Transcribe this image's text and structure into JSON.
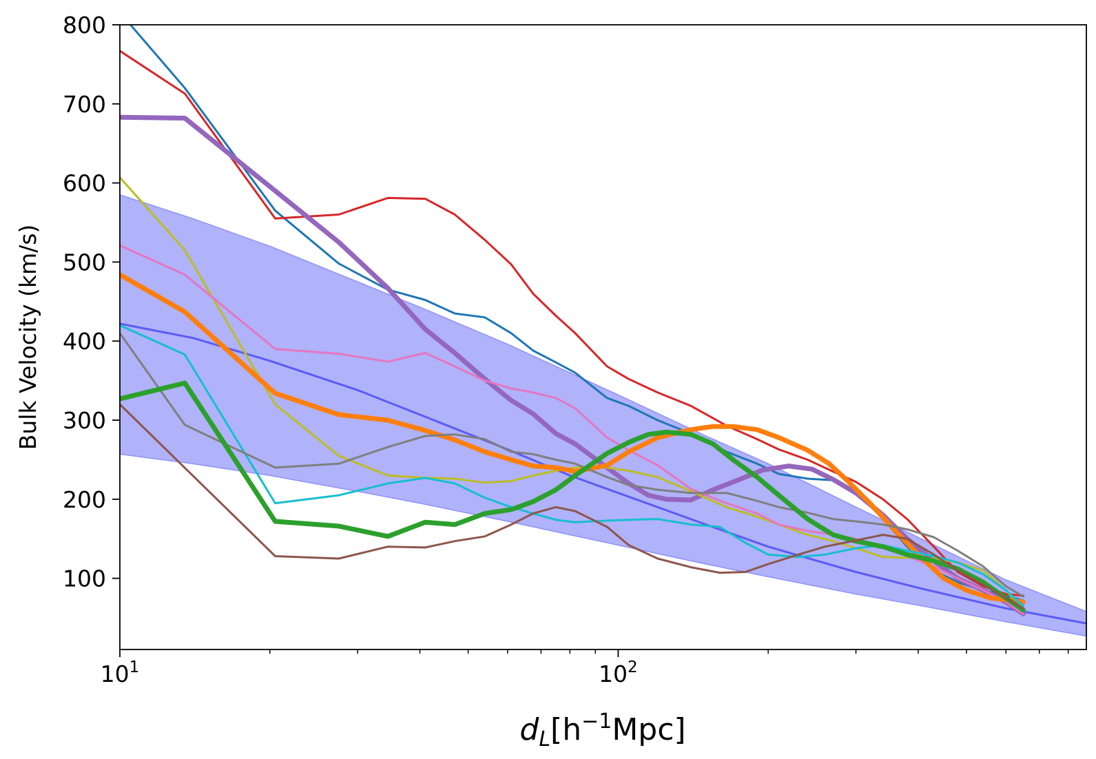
{
  "chart_data": {
    "type": "line",
    "title": "",
    "xlabel": {
      "base": "d",
      "sub": "L",
      "pre": "[h",
      "sup": "−1",
      "post": "Mpc]"
    },
    "ylabel": "Bulk Velocity (km/s)",
    "xscale": "log",
    "xlim": [
      10,
      870
    ],
    "ylim": [
      10,
      800
    ],
    "grid": false,
    "legend": "none",
    "x_tick_labels": [
      {
        "value": 10,
        "base": "10",
        "exp": "1"
      },
      {
        "value": 100,
        "base": "10",
        "exp": "2"
      }
    ],
    "x_minor_ticks": [
      20,
      30,
      40,
      50,
      60,
      70,
      80,
      90,
      200,
      300,
      400,
      500,
      600,
      700,
      800
    ],
    "y_ticks": [
      100,
      200,
      300,
      400,
      500,
      600,
      700,
      800
    ],
    "y_tick_labels": [
      "100",
      "200",
      "300",
      "400",
      "500",
      "600",
      "700",
      "800"
    ],
    "band": {
      "color": "#b0b2fa",
      "edge_color": "#8f92fa",
      "x": [
        10,
        14,
        20,
        30,
        40,
        60,
        80,
        100,
        150,
        200,
        300,
        400,
        600,
        870
      ],
      "upper": [
        585,
        555,
        520,
        475,
        443,
        396,
        360,
        332,
        280,
        245,
        190,
        152,
        98,
        58
      ],
      "lower": [
        257,
        245,
        230,
        210,
        195,
        172,
        155,
        142,
        118,
        102,
        80,
        66,
        45,
        27
      ]
    },
    "series": [
      {
        "color": "#5b5bf5",
        "width": 3,
        "x": [
          10,
          14,
          20,
          30,
          40,
          60,
          80,
          100,
          150,
          200,
          300,
          400,
          600,
          870
        ],
        "y": [
          422,
          404,
          375,
          338,
          307,
          263,
          230,
          208,
          168,
          140,
          108,
          88,
          62,
          43
        ]
      },
      {
        "color": "#1f77b4",
        "width": 3,
        "x": [
          9.8,
          13.5,
          20.5,
          27.5,
          34.5,
          41,
          47,
          54,
          61,
          67.5,
          75,
          82,
          95,
          105,
          120,
          140,
          165,
          190,
          210,
          240,
          270,
          300,
          340,
          380,
          430,
          480,
          540,
          600,
          650
        ],
        "y": [
          822,
          720,
          565,
          498,
          465,
          452,
          435,
          430,
          410,
          388,
          373,
          360,
          328,
          318,
          300,
          283,
          260,
          245,
          232,
          226,
          224,
          210,
          175,
          140,
          110,
          95,
          85,
          78,
          72
        ]
      },
      {
        "color": "#d62728",
        "width": 3,
        "x": [
          10,
          13.5,
          20.5,
          27.5,
          34.5,
          41,
          47,
          54,
          61,
          67.5,
          75,
          82,
          95,
          105,
          120,
          140,
          165,
          190,
          210,
          240,
          270,
          300,
          340,
          380,
          430,
          480,
          540,
          600,
          650
        ],
        "y": [
          767,
          713,
          555,
          560,
          581,
          580,
          560,
          528,
          497,
          460,
          432,
          410,
          368,
          352,
          335,
          318,
          293,
          276,
          263,
          250,
          235,
          222,
          200,
          175,
          140,
          108,
          90,
          80,
          78
        ]
      },
      {
        "color": "#9467bd",
        "width": 7,
        "x": [
          10,
          13.5,
          20.5,
          27.5,
          34.5,
          41,
          47,
          54,
          61,
          67.5,
          75,
          82,
          95,
          105,
          115,
          125,
          140,
          155,
          175,
          195,
          220,
          245,
          270,
          300,
          340,
          380,
          430,
          480,
          540,
          600,
          650
        ],
        "y": [
          683,
          682,
          590,
          525,
          467,
          415,
          385,
          352,
          325,
          308,
          283,
          270,
          240,
          220,
          205,
          200,
          199,
          212,
          225,
          237,
          242,
          238,
          225,
          208,
          180,
          150,
          122,
          100,
          85,
          70,
          55
        ]
      },
      {
        "color": "#bcbd22",
        "width": 3,
        "x": [
          10,
          13.5,
          20.5,
          27.5,
          34.5,
          41,
          47,
          54,
          61,
          67.5,
          75,
          82,
          95,
          105,
          120,
          140,
          165,
          190,
          210,
          240,
          270,
          300,
          340,
          380,
          430,
          480,
          540,
          600,
          650
        ],
        "y": [
          607,
          515,
          320,
          255,
          230,
          227,
          226,
          221,
          223,
          230,
          236,
          240,
          240,
          236,
          228,
          210,
          190,
          178,
          168,
          155,
          147,
          138,
          127,
          126,
          125,
          120,
          110,
          85,
          60
        ]
      },
      {
        "color": "#e377c2",
        "width": 3,
        "x": [
          10,
          13.5,
          20.5,
          27.5,
          34.5,
          41,
          47,
          54,
          61,
          67.5,
          75,
          82,
          95,
          105,
          120,
          140,
          165,
          190,
          210,
          240,
          270,
          300,
          340,
          380,
          430,
          480,
          540,
          600,
          650
        ],
        "y": [
          521,
          484,
          390,
          384,
          374,
          385,
          368,
          350,
          340,
          335,
          328,
          315,
          278,
          262,
          243,
          213,
          195,
          182,
          168,
          160,
          155,
          150,
          140,
          128,
          115,
          100,
          85,
          70,
          55
        ]
      },
      {
        "color": "#ff7f0e",
        "width": 7,
        "x": [
          10,
          13.5,
          20.5,
          27.5,
          34.5,
          41,
          47,
          54,
          61,
          67.5,
          75,
          82,
          95,
          105,
          120,
          140,
          155,
          170,
          190,
          210,
          240,
          265,
          290,
          320,
          360,
          400,
          450,
          500,
          560,
          620,
          650
        ],
        "y": [
          484,
          437,
          334,
          307,
          300,
          287,
          275,
          260,
          250,
          242,
          240,
          235,
          243,
          260,
          278,
          288,
          292,
          292,
          288,
          278,
          262,
          245,
          222,
          195,
          160,
          130,
          100,
          85,
          75,
          72,
          70
        ]
      },
      {
        "color": "#17becf",
        "width": 3,
        "x": [
          10,
          13.5,
          20.5,
          27.5,
          34.5,
          41,
          47,
          54,
          61,
          67.5,
          75,
          82,
          95,
          105,
          120,
          140,
          160,
          180,
          200,
          230,
          260,
          300,
          340,
          380,
          430,
          480,
          540,
          600,
          650
        ],
        "y": [
          420,
          383,
          195,
          205,
          220,
          227,
          220,
          202,
          190,
          182,
          174,
          171,
          173,
          174,
          175,
          168,
          165,
          145,
          130,
          127,
          130,
          138,
          142,
          135,
          128,
          120,
          105,
          85,
          65
        ]
      },
      {
        "color": "#7f7f7f",
        "width": 3,
        "x": [
          10,
          13.5,
          20.5,
          27.5,
          34.5,
          41,
          47,
          54,
          61,
          67.5,
          75,
          82,
          95,
          105,
          120,
          140,
          165,
          190,
          210,
          240,
          270,
          300,
          340,
          380,
          430,
          480,
          540,
          600,
          650
        ],
        "y": [
          410,
          294,
          240,
          245,
          266,
          280,
          282,
          276,
          260,
          257,
          250,
          245,
          228,
          218,
          212,
          208,
          208,
          198,
          190,
          183,
          175,
          172,
          168,
          162,
          152,
          135,
          115,
          90,
          77
        ]
      },
      {
        "color": "#2ca02c",
        "width": 7,
        "x": [
          10,
          13.5,
          20.5,
          27.5,
          34.5,
          41,
          47,
          54,
          61,
          67.5,
          75,
          82,
          95,
          105,
          115,
          125,
          140,
          155,
          170,
          190,
          210,
          240,
          270,
          300,
          340,
          380,
          430,
          480,
          540,
          600,
          650
        ],
        "y": [
          327,
          347,
          172,
          166,
          153,
          171,
          168,
          182,
          187,
          197,
          212,
          230,
          258,
          272,
          282,
          285,
          282,
          270,
          250,
          228,
          205,
          175,
          155,
          147,
          140,
          130,
          122,
          112,
          95,
          75,
          60
        ]
      },
      {
        "color": "#8c564b",
        "width": 3,
        "x": [
          10,
          20.5,
          27.5,
          34.5,
          41,
          47,
          54,
          61,
          67.5,
          75,
          82,
          95,
          105,
          120,
          140,
          160,
          180,
          200,
          230,
          260,
          300,
          340,
          380,
          430,
          480,
          540,
          600,
          650
        ],
        "y": [
          320,
          128,
          125,
          140,
          139,
          147,
          153,
          168,
          182,
          190,
          185,
          165,
          142,
          125,
          114,
          107,
          108,
          118,
          130,
          140,
          148,
          155,
          150,
          130,
          110,
          92,
          75,
          62
        ]
      }
    ]
  }
}
